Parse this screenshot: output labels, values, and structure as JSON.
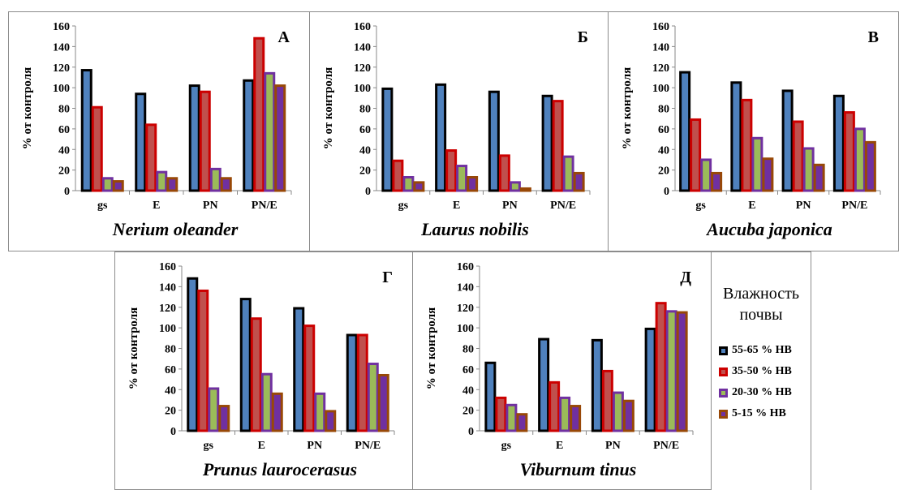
{
  "legend": {
    "title_line1": "Влажность",
    "title_line2": "почвы",
    "items": [
      {
        "label": "55-65 % HB",
        "fill": "#4f81bd",
        "stroke": "#000000"
      },
      {
        "label": "35-50 % HB",
        "fill": "#c0504d",
        "stroke": "#cc0000"
      },
      {
        "label": "20-30 % HB",
        "fill": "#9bbb59",
        "stroke": "#7030a0"
      },
      {
        "label": "5-15 % HB",
        "fill": "#7030a0",
        "stroke": "#984807"
      }
    ]
  },
  "chart_data": [
    {
      "type": "bar",
      "panel_letter": "А",
      "title": "Nerium oleander",
      "ylabel": "% от контроля",
      "categories": [
        "gs",
        "E",
        "PN",
        "PN/E"
      ],
      "yticks": [
        "0",
        "20",
        "40",
        "60",
        "80",
        "100",
        "120",
        "140",
        "160"
      ],
      "ylim": [
        0,
        160
      ],
      "series": [
        {
          "name": "55-65 % HB",
          "values": [
            117,
            94,
            102,
            107
          ]
        },
        {
          "name": "35-50 % HB",
          "values": [
            81,
            64,
            96,
            148
          ]
        },
        {
          "name": "20-30 % HB",
          "values": [
            12,
            18,
            21,
            114
          ]
        },
        {
          "name": "5-15 % HB",
          "values": [
            9,
            12,
            12,
            102
          ]
        }
      ]
    },
    {
      "type": "bar",
      "panel_letter": "Б",
      "title": "Laurus nobilis",
      "ylabel": "% от контроля",
      "categories": [
        "gs",
        "E",
        "PN",
        "PN/E"
      ],
      "yticks": [
        "0",
        "20",
        "40",
        "60",
        "80",
        "100",
        "120",
        "140",
        "160"
      ],
      "ylim": [
        0,
        160
      ],
      "series": [
        {
          "name": "55-65 % HB",
          "values": [
            99,
            103,
            96,
            92
          ]
        },
        {
          "name": "35-50 % HB",
          "values": [
            29,
            39,
            34,
            87
          ]
        },
        {
          "name": "20-30 % HB",
          "values": [
            13,
            24,
            8,
            33
          ]
        },
        {
          "name": "5-15 % HB",
          "values": [
            8,
            13,
            2,
            17
          ]
        }
      ]
    },
    {
      "type": "bar",
      "panel_letter": "В",
      "title": "Aucuba japonica",
      "ylabel": "% от контроля",
      "categories": [
        "gs",
        "E",
        "PN",
        "PN/E"
      ],
      "yticks": [
        "0",
        "20",
        "40",
        "60",
        "80",
        "100",
        "120",
        "140",
        "160"
      ],
      "ylim": [
        0,
        160
      ],
      "series": [
        {
          "name": "55-65 % HB",
          "values": [
            115,
            105,
            97,
            92
          ]
        },
        {
          "name": "35-50 % HB",
          "values": [
            69,
            88,
            67,
            76
          ]
        },
        {
          "name": "20-30 % HB",
          "values": [
            30,
            51,
            41,
            60
          ]
        },
        {
          "name": "5-15 % HB",
          "values": [
            17,
            31,
            25,
            47
          ]
        }
      ]
    },
    {
      "type": "bar",
      "panel_letter": "Г",
      "title": "Prunus laurocerasus",
      "ylabel": "% от контроля",
      "categories": [
        "gs",
        "E",
        "PN",
        "PN/E"
      ],
      "yticks": [
        "0",
        "20",
        "40",
        "60",
        "80",
        "100",
        "120",
        "140",
        "160"
      ],
      "ylim": [
        0,
        160
      ],
      "series": [
        {
          "name": "55-65 % HB",
          "values": [
            148,
            128,
            119,
            93
          ]
        },
        {
          "name": "35-50 % HB",
          "values": [
            136,
            109,
            102,
            93
          ]
        },
        {
          "name": "20-30 % HB",
          "values": [
            41,
            55,
            36,
            65
          ]
        },
        {
          "name": "5-15 % HB",
          "values": [
            24,
            36,
            19,
            54
          ]
        }
      ]
    },
    {
      "type": "bar",
      "panel_letter": "Д",
      "title": "Viburnum tinus",
      "ylabel": "% от контроля",
      "categories": [
        "gs",
        "E",
        "PN",
        "PN/E"
      ],
      "yticks": [
        "0",
        "20",
        "40",
        "60",
        "80",
        "100",
        "120",
        "140",
        "160"
      ],
      "ylim": [
        0,
        160
      ],
      "series": [
        {
          "name": "55-65 % HB",
          "values": [
            66,
            89,
            88,
            99
          ]
        },
        {
          "name": "35-50 % HB",
          "values": [
            32,
            47,
            58,
            124
          ]
        },
        {
          "name": "20-30 % HB",
          "values": [
            25,
            32,
            37,
            116
          ]
        },
        {
          "name": "5-15 % HB",
          "values": [
            16,
            24,
            29,
            115
          ]
        }
      ]
    }
  ]
}
